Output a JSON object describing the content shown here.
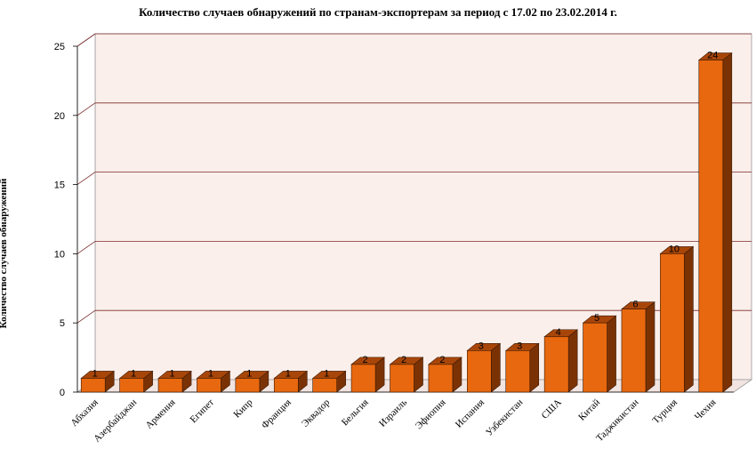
{
  "chart_data": {
    "type": "bar",
    "title": "Количество случаев обнаружений по странам-экспортерам за период с 17.02 по 23.02.2014 г.",
    "ylabel": "Количество случаев обнаружений",
    "xlabel": "",
    "ylim": [
      0,
      25
    ],
    "yticks": [
      0,
      5,
      10,
      15,
      20,
      25
    ],
    "grid": true,
    "categories": [
      "Абхазия",
      "Азербайджан",
      "Армения",
      "Египет",
      "Кипр",
      "Франция",
      "Эквадор",
      "Бельгия",
      "Израиль",
      "Эфиопия",
      "Испания",
      "Узбекистан",
      "США",
      "Китай",
      "Таджикистан",
      "Турция",
      "Чехия"
    ],
    "values": [
      1,
      1,
      1,
      1,
      1,
      1,
      1,
      2,
      2,
      2,
      3,
      3,
      4,
      5,
      6,
      10,
      24
    ],
    "colors": {
      "bar_front": "#E8680F",
      "bar_side": "#7A3205",
      "bar_top": "#A8460A",
      "plot_back": "#FBEFEB",
      "plot_floor": "#F2E4E0",
      "grid": "#7A2A2A"
    }
  }
}
